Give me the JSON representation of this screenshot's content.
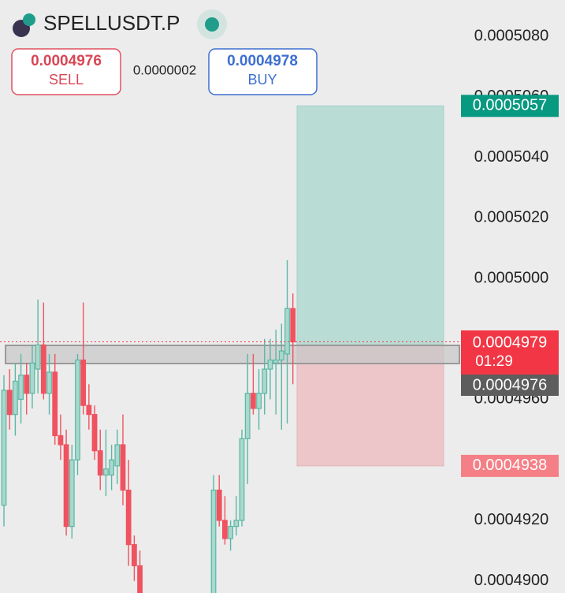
{
  "chart_data": {
    "type": "candlestick",
    "title": "SPELLUSDT.P",
    "bid": 0.0004976,
    "bid_caption": "SELL",
    "ask": 0.0004978,
    "ask_caption": "BUY",
    "spread": {
      "value": 2e-07,
      "label": "0.0000002"
    },
    "last_price": 0.0004979,
    "countdown": "01:29",
    "take_profit": 0.0005057,
    "stop_loss": 0.0004938,
    "up_color": "#5bb7a5",
    "down_color": "#ef5360",
    "ylim": [
      0.0004896,
      0.0005092
    ],
    "yticks": [
      {
        "value": 0.00049,
        "label": "0.0004900"
      },
      {
        "value": 0.000492,
        "label": "0.0004920"
      },
      {
        "value": 0.000496,
        "label": "0.0004960"
      },
      {
        "value": 0.0005,
        "label": "0.0005000"
      },
      {
        "value": 0.000502,
        "label": "0.0005020"
      },
      {
        "value": 0.000504,
        "label": "0.0005040"
      },
      {
        "value": 0.000506,
        "label": "0.0005060"
      },
      {
        "value": 0.000508,
        "label": "0.0005080"
      }
    ],
    "open": [
      0.0004925,
      0.0004963,
      0.0004955,
      0.000496,
      0.0004968,
      0.0004962,
      0.000497,
      0.0004978,
      0.0004962,
      0.0004969,
      0.0004948,
      0.0004945,
      0.0004918,
      0.000494,
      0.0004973,
      0.0004958,
      0.0004955,
      0.0004943,
      0.0004935,
      0.0004935,
      0.0004938,
      0.0004945,
      0.000493,
      0.0004912,
      0.0004905,
      null,
      null,
      null,
      null,
      null,
      null,
      null,
      null,
      null,
      null,
      null,
      null,
      0.0004895,
      0.000493,
      0.000492,
      0.0004914,
      0.0004918,
      0.000492,
      0.0004947,
      0.0004962,
      0.0004957,
      0.0004962,
      0.000497,
      0.0004972,
      0.0004973,
      0.0004975,
      0.000499
    ],
    "high": [
      0.0004968,
      0.000497,
      0.0004972,
      0.0004975,
      0.0004972,
      0.0004978,
      0.0004993,
      0.0004992,
      0.0004975,
      0.0004975,
      0.0004955,
      0.000495,
      0.0004945,
      0.0004975,
      0.0004992,
      0.0004965,
      0.0004958,
      0.000495,
      0.000495,
      0.0004945,
      0.000495,
      0.0004955,
      0.000494,
      0.0004915,
      0.000491,
      null,
      null,
      null,
      null,
      null,
      null,
      null,
      null,
      null,
      null,
      null,
      null,
      0.0004935,
      0.0004935,
      0.0004928,
      0.000492,
      0.0004928,
      0.000495,
      0.0004975,
      0.0004975,
      0.000497,
      0.000498,
      0.000498,
      0.0004983,
      0.0004985,
      0.0005006,
      0.0004995
    ],
    "low": [
      0.0004918,
      0.000495,
      0.0004948,
      0.0004952,
      0.0004955,
      0.0004957,
      0.0004962,
      0.000496,
      0.0004955,
      0.0004945,
      0.000494,
      0.0004915,
      0.0004914,
      0.0004935,
      0.0004955,
      0.000495,
      0.000494,
      0.000493,
      0.0004928,
      0.000493,
      0.0004932,
      0.0004925,
      0.0004905,
      0.00049,
      0.000489,
      null,
      null,
      null,
      null,
      null,
      null,
      null,
      null,
      null,
      null,
      null,
      null,
      0.0004893,
      0.0004918,
      0.0004912,
      0.000491,
      0.0004915,
      0.0004918,
      0.0004932,
      0.0004955,
      0.000495,
      0.0004955,
      0.000496,
      0.0004955,
      0.000495,
      0.0004952,
      0.0004965
    ],
    "close": [
      0.0004963,
      0.0004955,
      0.0004966,
      0.0004968,
      0.0004962,
      0.0004972,
      0.0004978,
      0.0004962,
      0.0004969,
      0.0004948,
      0.0004945,
      0.0004918,
      0.000494,
      0.0004973,
      0.0004958,
      0.0004955,
      0.0004943,
      0.0004935,
      0.0004937,
      0.000494,
      0.0004945,
      0.000493,
      0.0004912,
      0.0004905,
      0.0004892,
      null,
      null,
      null,
      null,
      null,
      null,
      null,
      null,
      null,
      null,
      null,
      null,
      0.000493,
      0.000492,
      0.0004914,
      0.0004918,
      0.000492,
      0.0004947,
      0.0004962,
      0.0004957,
      0.0004962,
      0.000497,
      0.0004973,
      0.0004973,
      0.0004976,
      0.000499,
      0.0004979
    ]
  }
}
